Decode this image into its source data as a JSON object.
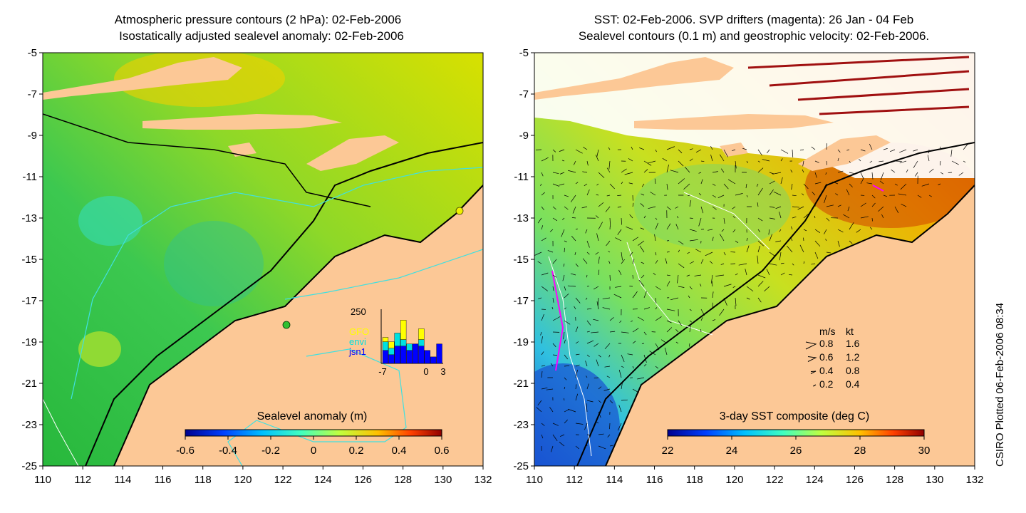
{
  "left_panel": {
    "title_line1": "Atmospheric pressure contours (2 hPa): 02-Feb-2006",
    "title_line2": "Isostatically adjusted sealevel anomaly: 02-Feb-2006",
    "x_ticks": [
      "110",
      "112",
      "114",
      "116",
      "118",
      "120",
      "122",
      "124",
      "126",
      "128",
      "130",
      "132"
    ],
    "y_ticks": [
      "-5",
      "-7",
      "-9",
      "-11",
      "-13",
      "-15",
      "-17",
      "-19",
      "-21",
      "-23",
      "-25"
    ],
    "colorbar": {
      "title": "Sealevel anomaly (m)",
      "ticks": [
        "-0.6",
        "-0.4",
        "-0.2",
        "0",
        "0.2",
        "0.4",
        "0.6"
      ],
      "range": [
        -0.6,
        0.6
      ],
      "colors": [
        "#00008f",
        "#0040ff",
        "#00c0ff",
        "#40ffc0",
        "#c0ff40",
        "#ffc000",
        "#ff4000",
        "#900000"
      ]
    },
    "inset": {
      "ymax_label": "250",
      "x_labels": [
        "-7",
        "0",
        "3"
      ],
      "legend": [
        {
          "name": "GFO",
          "color": "#ffff00"
        },
        {
          "name": "envi",
          "color": "#00e0e0"
        },
        {
          "name": "jsn1",
          "color": "#0000ff"
        }
      ],
      "bars": [
        {
          "gfo": 20,
          "envi": 40,
          "jsn1": 60
        },
        {
          "gfo": 30,
          "envi": 30,
          "jsn1": 40
        },
        {
          "gfo": 0,
          "envi": 60,
          "jsn1": 80
        },
        {
          "gfo": 90,
          "envi": 30,
          "jsn1": 80
        },
        {
          "gfo": 0,
          "envi": 30,
          "jsn1": 60
        },
        {
          "gfo": 0,
          "envi": 0,
          "jsn1": 90
        },
        {
          "gfo": 50,
          "envi": 30,
          "jsn1": 80
        },
        {
          "gfo": 0,
          "envi": 0,
          "jsn1": 60
        },
        {
          "gfo": 0,
          "envi": 0,
          "jsn1": 30
        },
        {
          "gfo": 0,
          "envi": 0,
          "jsn1": 90
        }
      ]
    }
  },
  "right_panel": {
    "title_line1": "SST: 02-Feb-2006. SVP drifters (magenta): 26 Jan - 04 Feb",
    "title_line2": "Sealevel contours (0.1 m) and geostrophic velocity: 02-Feb-2006.",
    "x_ticks": [
      "110",
      "112",
      "114",
      "116",
      "118",
      "120",
      "122",
      "124",
      "126",
      "128",
      "130",
      "132"
    ],
    "y_ticks": [
      "-5",
      "-7",
      "-9",
      "-11",
      "-13",
      "-15",
      "-17",
      "-19",
      "-21",
      "-23",
      "-25"
    ],
    "colorbar": {
      "title": "3-day SST composite (deg C)",
      "ticks": [
        "22",
        "24",
        "26",
        "28",
        "30"
      ],
      "range": [
        22,
        30
      ],
      "colors": [
        "#00008f",
        "#0040ff",
        "#00c0ff",
        "#40ffc0",
        "#c0ff40",
        "#ffc000",
        "#ff4000",
        "#900000"
      ]
    },
    "velocity_key": {
      "header_ms": "m/s",
      "header_kt": "kt",
      "rows": [
        {
          "ms": "0.8",
          "kt": "1.6"
        },
        {
          "ms": "0.6",
          "kt": "1.2"
        },
        {
          "ms": "0.4",
          "kt": "0.8"
        },
        {
          "ms": "0.2",
          "kt": "0.4"
        }
      ]
    }
  },
  "credit": "CSIRO Plotted 06-Feb-2006 08:34",
  "colors": {
    "land": "#fcc896",
    "coast": "#000000",
    "contour_cyan": "#40e0e0",
    "drifter": "#ff00ff"
  }
}
